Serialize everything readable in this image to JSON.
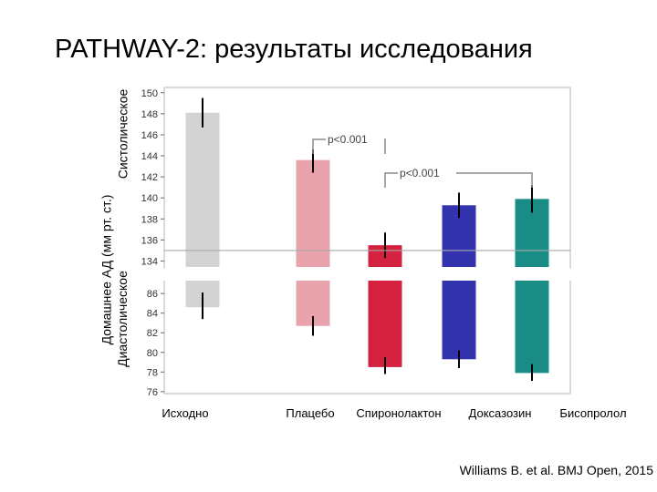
{
  "title": "PATHWAY-2: результаты исследования",
  "citation": "Williams B. et al. BMJ Open, 2015",
  "chart_data": {
    "type": "bar",
    "title": "PATHWAY-2: результаты исследования",
    "categories": [
      "Исходно",
      "Плацебо",
      "Спиронолактон",
      "Доксазозин",
      "Бисопролол"
    ],
    "ylabel_lines": [
      "Домашнее АД (мм рт. ст.)",
      "Систолическое",
      "Диастолическое"
    ],
    "systolic": {
      "ylim": [
        133,
        150.5
      ],
      "ticks": [
        134,
        136,
        138,
        140,
        142,
        144,
        146,
        148,
        150
      ],
      "baseline": 135,
      "values": [
        148.1,
        143.6,
        135.5,
        139.3,
        139.9
      ],
      "err_low": [
        146.7,
        142.4,
        134.3,
        138.1,
        138.6
      ],
      "err_high": [
        149.5,
        144.6,
        136.7,
        140.5,
        141.2
      ]
    },
    "diastolic": {
      "ylim": [
        75.8,
        87.5
      ],
      "ticks": [
        76,
        78,
        80,
        82,
        84,
        86
      ],
      "baseline": 87.5,
      "values": [
        84.6,
        82.7,
        78.5,
        79.3,
        77.9
      ],
      "err_low": [
        83.4,
        81.7,
        77.8,
        78.4,
        77.1
      ],
      "err_high": [
        86.1,
        83.7,
        79.5,
        80.2,
        78.8
      ]
    },
    "colors": [
      "#d3d3d3",
      "#e8a3ad",
      "#d4213f",
      "#3333b0",
      "#1a8c86"
    ],
    "annotations": [
      {
        "text": "p<0.001",
        "from": 1,
        "to": 2
      },
      {
        "text": "p<0.001",
        "from": 2,
        "to": 4
      }
    ]
  }
}
